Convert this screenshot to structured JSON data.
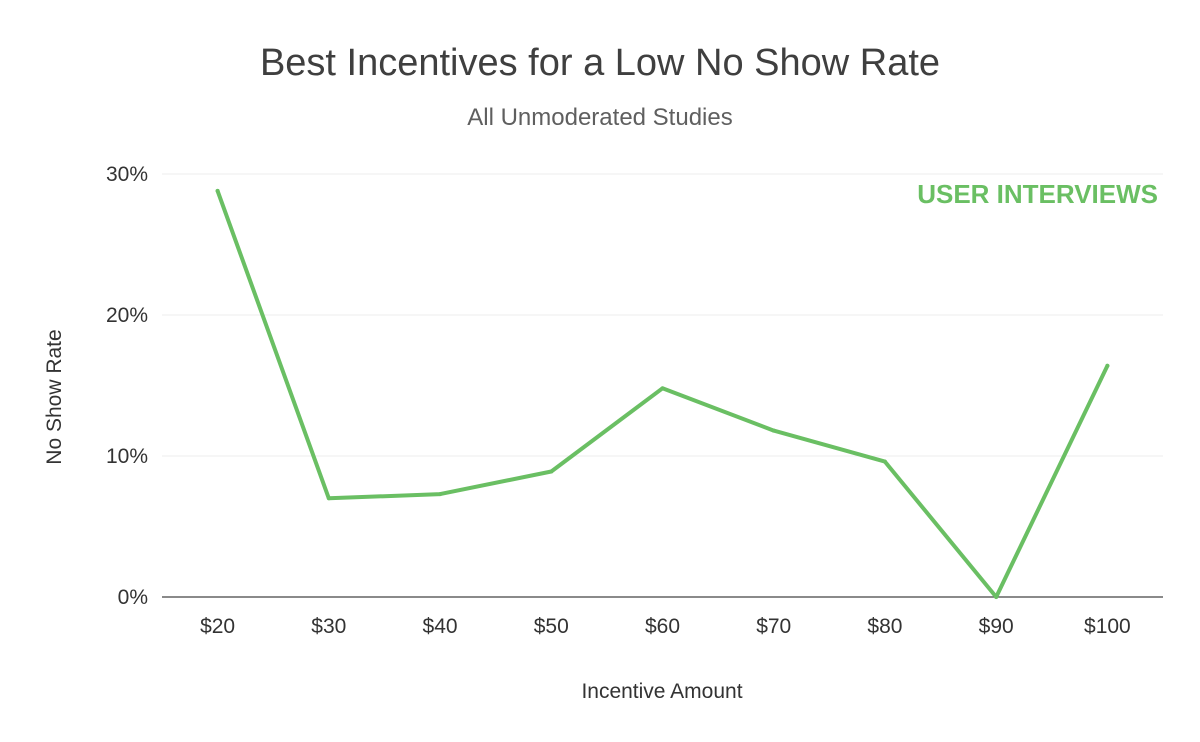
{
  "chart_data": {
    "type": "line",
    "title": "Best Incentives for a Low No Show Rate",
    "subtitle": "All Unmoderated Studies",
    "xlabel": "Incentive Amount",
    "ylabel": "No Show Rate",
    "categories": [
      "$20",
      "$30",
      "$40",
      "$50",
      "$60",
      "$70",
      "$80",
      "$90",
      "$100"
    ],
    "series": [
      {
        "values": [
          28.8,
          7.0,
          7.3,
          8.9,
          14.8,
          11.8,
          9.6,
          0.0,
          16.4
        ],
        "color": "#6abf63"
      }
    ],
    "ylim": [
      0,
      30
    ],
    "yticks": [
      0,
      10,
      20,
      30
    ],
    "ytick_labels": [
      "0%",
      "10%",
      "20%",
      "30%"
    ],
    "grid": true,
    "legend": "none"
  },
  "watermark": {
    "text": "USER INTERVIEWS",
    "color": "#6abf63"
  }
}
